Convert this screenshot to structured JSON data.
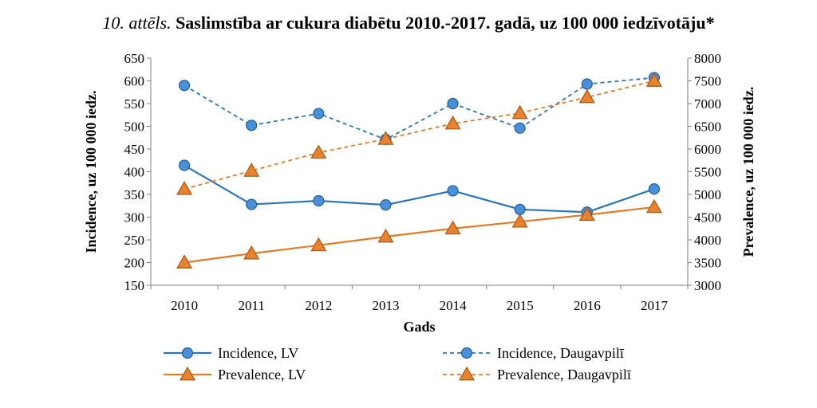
{
  "title": {
    "number": "10. attēls.",
    "text": "Saslimstība ar cukura diabētu 2010.-2017. gadā, uz 100 000 iedzīvotāju*"
  },
  "chart_data": {
    "type": "line",
    "x": [
      "2010",
      "2011",
      "2012",
      "2013",
      "2014",
      "2015",
      "2016",
      "2017"
    ],
    "xlabel": "Gads",
    "ylabel_left": "Incidence, uz 100 000 iedz.",
    "ylabel_right": "Prevalence, uz 100 000 iedz.",
    "ylim_left": [
      150,
      650
    ],
    "yticks_left": [
      "150",
      "200",
      "250",
      "300",
      "350",
      "400",
      "450",
      "500",
      "550",
      "600",
      "650"
    ],
    "ylim_right": [
      3000,
      8000
    ],
    "yticks_right": [
      "3000",
      "3500",
      "4000",
      "4500",
      "5000",
      "5500",
      "6000",
      "6500",
      "7000",
      "7500",
      "8000"
    ],
    "grid": false,
    "legend_position": "bottom",
    "series": [
      {
        "name": "Incidence, LV",
        "axis": "left",
        "color": "#2e75b6",
        "dashed": false,
        "marker": "circle",
        "values": [
          414,
          328,
          336,
          327,
          358,
          317,
          311,
          362
        ]
      },
      {
        "name": "Incidence, Daugavpilī",
        "axis": "left",
        "color": "#2e75b6",
        "dashed": true,
        "marker": "circle",
        "values": [
          590,
          502,
          528,
          471,
          550,
          496,
          593,
          607
        ]
      },
      {
        "name": "Prevalence, LV",
        "axis": "right",
        "color": "#e07b2a",
        "dashed": false,
        "marker": "triangle",
        "values": [
          3500,
          3700,
          3880,
          4070,
          4250,
          4400,
          4550,
          4720
        ]
      },
      {
        "name": "Prevalence, Daugavpilī",
        "axis": "right",
        "color": "#e07b2a",
        "dashed": true,
        "marker": "triangle",
        "values": [
          5120,
          5520,
          5920,
          6220,
          6560,
          6790,
          7140,
          7500
        ]
      }
    ]
  }
}
